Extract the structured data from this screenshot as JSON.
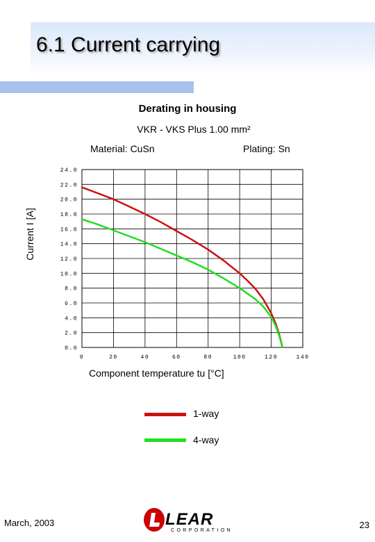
{
  "slide": {
    "title": "6.1 Current carrying",
    "date": "March, 2003",
    "page_number": "23",
    "logo": {
      "name": "LEAR",
      "sub": "CORPORATION",
      "mark": "L",
      "brand_color": "#cc0000"
    }
  },
  "chart": {
    "title": "Derating in housing",
    "subtitle": "VKR - VKS  Plus 1.00 mm²",
    "material": "Material: CuSn",
    "plating": "Plating: Sn"
  },
  "chart_data": {
    "type": "line",
    "xlabel": "Component temperature tu [°C]",
    "ylabel": "Current I [A]",
    "xlim": [
      0,
      140
    ],
    "ylim": [
      0,
      24
    ],
    "x_ticks": [
      "0",
      "20",
      "40",
      "60",
      "80",
      "100",
      "120",
      "140"
    ],
    "y_ticks": [
      "0.0",
      "2.0",
      "4.0",
      "6.0",
      "8.0",
      "10.0",
      "12.0",
      "14.0",
      "16.0",
      "18.0",
      "20.0",
      "22.0",
      "24.0"
    ],
    "grid": true,
    "series": [
      {
        "name": "1-way",
        "color": "#cc1111",
        "points": [
          [
            0,
            21.6
          ],
          [
            10,
            20.8
          ],
          [
            20,
            20.0
          ],
          [
            30,
            19.0
          ],
          [
            40,
            18.0
          ],
          [
            50,
            16.9
          ],
          [
            60,
            15.7
          ],
          [
            70,
            14.5
          ],
          [
            80,
            13.2
          ],
          [
            90,
            11.7
          ],
          [
            100,
            10.0
          ],
          [
            105,
            9.0
          ],
          [
            110,
            7.9
          ],
          [
            115,
            6.5
          ],
          [
            120,
            4.6
          ],
          [
            123,
            3.1
          ],
          [
            125,
            1.8
          ],
          [
            126.5,
            0.6
          ],
          [
            127,
            0.0
          ]
        ]
      },
      {
        "name": "4-way",
        "color": "#22dd22",
        "points": [
          [
            0,
            17.3
          ],
          [
            10,
            16.6
          ],
          [
            20,
            15.8
          ],
          [
            30,
            15.0
          ],
          [
            40,
            14.2
          ],
          [
            50,
            13.3
          ],
          [
            60,
            12.4
          ],
          [
            70,
            11.5
          ],
          [
            80,
            10.5
          ],
          [
            90,
            9.3
          ],
          [
            100,
            8.0
          ],
          [
            110,
            6.5
          ],
          [
            115,
            5.5
          ],
          [
            120,
            4.1
          ],
          [
            123,
            2.8
          ],
          [
            125,
            1.6
          ],
          [
            126.5,
            0.5
          ],
          [
            127,
            0.0
          ]
        ]
      }
    ]
  },
  "colors": {
    "title_band": "#dbe8fb",
    "accent_bar": "#a9c2ec"
  }
}
